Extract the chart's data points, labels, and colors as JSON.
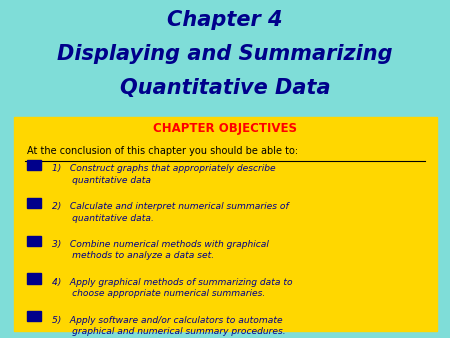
{
  "bg_color": "#7FDDD8",
  "title_line1": "Chapter 4",
  "title_line2": "Displaying and Summarizing",
  "title_line3": "Quantitative Data",
  "title_color": "#00008B",
  "box_color": "#FFD700",
  "objectives_title": "CHAPTER OBJECTIVES",
  "objectives_title_color": "#FF0000",
  "subtitle": "At the conclusion of this chapter you should be able to:",
  "subtitle_color": "#000000",
  "bullet_color": "#00008B",
  "bullet_text_color": "#00008B",
  "bullets": [
    "1)   Construct graphs that appropriately describe\n       quantitative data",
    "2)   Calculate and interpret numerical summaries of\n       quantitative data.",
    "3)   Combine numerical methods with graphical\n       methods to analyze a data set.",
    "4)   Apply graphical methods of summarizing data to\n       choose appropriate numerical summaries.",
    "5)   Apply software and/or calculators to automate\n       graphical and numerical summary procedures."
  ]
}
